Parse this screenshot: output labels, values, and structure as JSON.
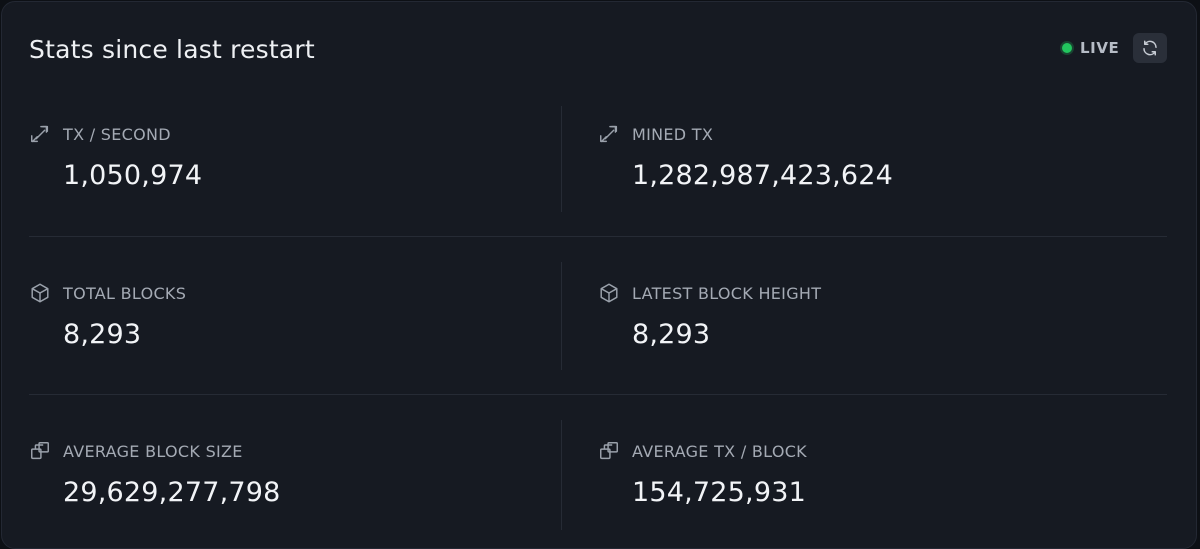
{
  "header": {
    "title": "Stats since last restart",
    "live_label": "LIVE",
    "live_color": "#22c55e"
  },
  "stats": [
    {
      "icon": "swap-arrows-icon",
      "label": "TX / SECOND",
      "value": "1,050,974"
    },
    {
      "icon": "swap-arrows-icon",
      "label": "MINED TX",
      "value": "1,282,987,423,624"
    },
    {
      "icon": "cube-icon",
      "label": "TOTAL BLOCKS",
      "value": "8,293"
    },
    {
      "icon": "cube-icon",
      "label": "LATEST BLOCK HEIGHT",
      "value": "8,293"
    },
    {
      "icon": "stacked-squares-icon",
      "label": "AVERAGE BLOCK SIZE",
      "value": "29,629,277,798"
    },
    {
      "icon": "stacked-squares-icon",
      "label": "AVERAGE TX / BLOCK",
      "value": "154,725,931"
    }
  ]
}
